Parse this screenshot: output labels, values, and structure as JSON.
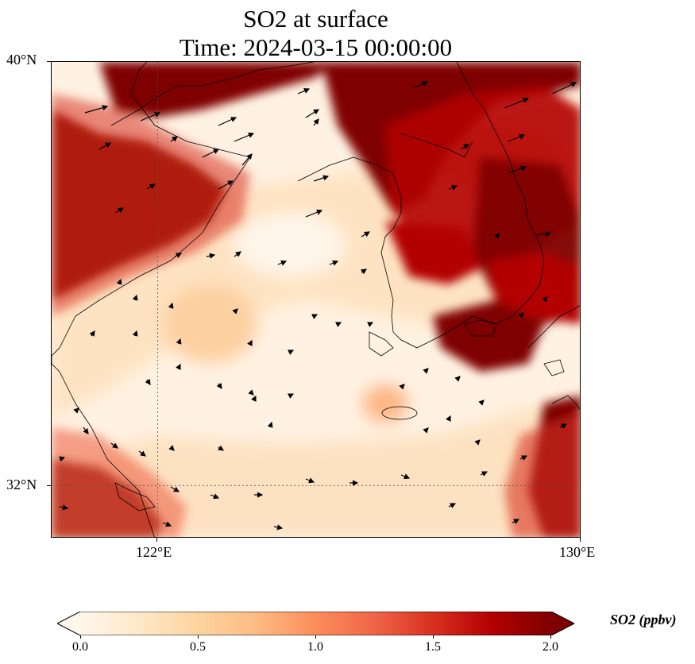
{
  "title": {
    "line1": "SO2 at surface",
    "line2": "Time: 2024-03-15 00:00:00"
  },
  "axes": {
    "lat_ticks": [
      "40°N",
      "32°N"
    ],
    "lon_ticks": [
      "122°E",
      "130°E"
    ]
  },
  "colorbar": {
    "label": "SO2 (ppbv)",
    "ticks": [
      "0.0",
      "0.5",
      "1.0",
      "1.5",
      "2.0"
    ],
    "range": [
      0.0,
      2.0
    ],
    "extend": "both",
    "colormap": "OrRd",
    "stops": [
      "#fff7ec",
      "#fee8c8",
      "#fdd49e",
      "#fdbb84",
      "#fc8d59",
      "#ef6548",
      "#d7301f",
      "#b30000",
      "#7f0000"
    ]
  },
  "map": {
    "lon_range": [
      120,
      130
    ],
    "lat_range": [
      31,
      40
    ],
    "gridlines": {
      "lon": [
        122
      ],
      "lat": [
        32
      ]
    },
    "coastline_color": "#000000",
    "wind_vector_color": "#000000"
  }
}
